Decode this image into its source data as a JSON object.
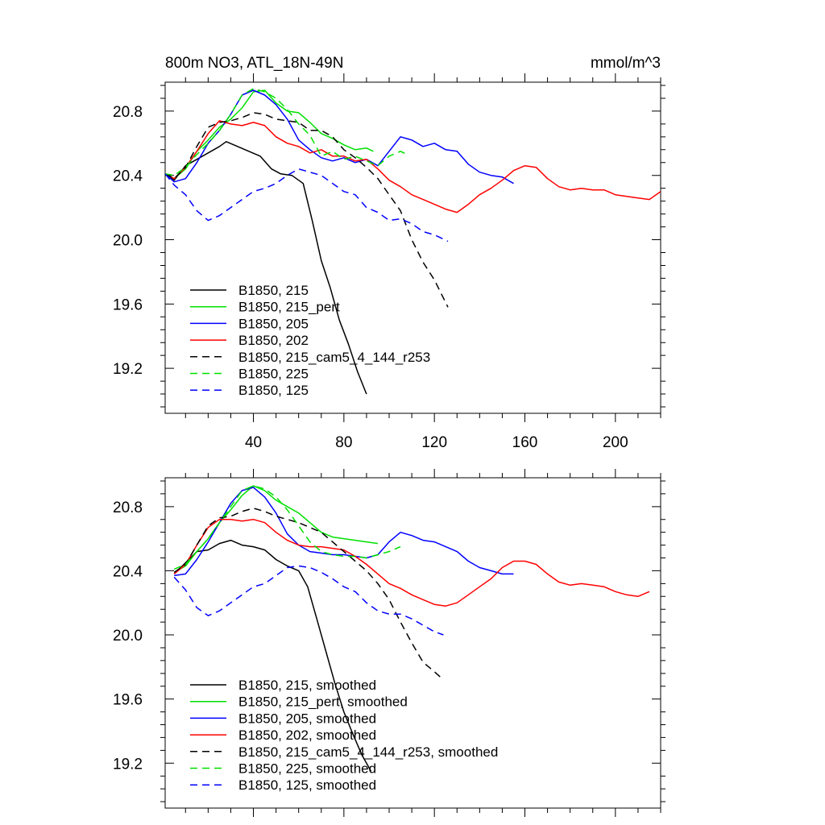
{
  "chart_data": [
    {
      "type": "line",
      "title": "800m NO3, ATL_18N-49N",
      "units": "mmol/m^3",
      "xlabel": "",
      "ylabel": "",
      "xlim": [
        1,
        220
      ],
      "ylim": [
        18.92,
        20.98
      ],
      "xticks": [
        40,
        80,
        120,
        160,
        200
      ],
      "xtick_labels": [
        "40",
        "80",
        "120",
        "160",
        "200"
      ],
      "yticks": [
        19.2,
        19.6,
        20.0,
        20.4,
        20.8
      ],
      "ytick_labels": [
        "19.2",
        "19.6",
        "20.0",
        "20.4",
        "20.8"
      ],
      "legend_position": "bottom-left",
      "series": [
        {
          "name": "B1850, 215",
          "color": "#000000",
          "dash": "solid",
          "x": [
            1,
            5,
            10,
            15,
            20,
            25,
            28,
            33,
            38,
            43,
            48,
            52,
            57,
            62,
            66,
            70,
            74,
            78,
            82,
            86,
            90
          ],
          "y": [
            20.41,
            20.37,
            20.46,
            20.5,
            20.54,
            20.58,
            20.61,
            20.58,
            20.55,
            20.52,
            20.44,
            20.41,
            20.4,
            20.35,
            20.12,
            19.87,
            19.7,
            19.5,
            19.35,
            19.18,
            19.04
          ]
        },
        {
          "name": "B1850, 215_pert",
          "color": "#00e000",
          "dash": "solid",
          "x": [
            1,
            5,
            10,
            15,
            20,
            25,
            30,
            35,
            40,
            45,
            50,
            55,
            60,
            65,
            70,
            75,
            80,
            85,
            90,
            93
          ],
          "y": [
            20.41,
            20.38,
            20.44,
            20.55,
            20.62,
            20.7,
            20.75,
            20.82,
            20.92,
            20.93,
            20.85,
            20.8,
            20.79,
            20.73,
            20.66,
            20.63,
            20.59,
            20.56,
            20.57,
            20.55
          ]
        },
        {
          "name": "B1850, 205",
          "color": "#0000ff",
          "dash": "solid",
          "x": [
            1,
            5,
            10,
            15,
            20,
            25,
            30,
            35,
            40,
            45,
            50,
            55,
            60,
            65,
            70,
            75,
            80,
            85,
            90,
            95,
            100,
            105,
            110,
            115,
            120,
            125,
            130,
            135,
            140,
            145,
            150,
            155
          ],
          "y": [
            20.41,
            20.36,
            20.38,
            20.48,
            20.6,
            20.68,
            20.78,
            20.9,
            20.93,
            20.9,
            20.84,
            20.75,
            20.62,
            20.56,
            20.51,
            20.49,
            20.51,
            20.48,
            20.5,
            20.46,
            20.55,
            20.64,
            20.62,
            20.58,
            20.6,
            20.56,
            20.55,
            20.47,
            20.42,
            20.4,
            20.39,
            20.35
          ]
        },
        {
          "name": "B1850, 202",
          "color": "#ff0000",
          "dash": "solid",
          "x": [
            1,
            5,
            10,
            15,
            20,
            25,
            30,
            35,
            40,
            45,
            50,
            55,
            60,
            65,
            70,
            75,
            80,
            85,
            90,
            95,
            100,
            105,
            110,
            115,
            120,
            125,
            130,
            135,
            140,
            145,
            150,
            155,
            160,
            165,
            170,
            175,
            180,
            185,
            190,
            195,
            200,
            205,
            210,
            215,
            220
          ],
          "y": [
            20.41,
            20.38,
            20.45,
            20.55,
            20.66,
            20.74,
            20.72,
            20.71,
            20.73,
            20.71,
            20.64,
            20.6,
            20.58,
            20.54,
            20.56,
            20.52,
            20.52,
            20.49,
            20.5,
            20.44,
            20.37,
            20.33,
            20.28,
            20.25,
            20.22,
            20.19,
            20.17,
            20.22,
            20.28,
            20.32,
            20.37,
            20.43,
            20.46,
            20.45,
            20.38,
            20.33,
            20.31,
            20.32,
            20.31,
            20.31,
            20.28,
            20.27,
            20.26,
            20.25,
            20.3
          ]
        },
        {
          "name": "B1850, 215_cam5_4_144_r253",
          "color": "#000000",
          "dash": "dashed",
          "x": [
            1,
            5,
            10,
            15,
            20,
            25,
            30,
            35,
            40,
            45,
            50,
            55,
            60,
            65,
            70,
            75,
            80,
            85,
            90,
            95,
            100,
            105,
            110,
            115,
            120,
            126
          ],
          "y": [
            20.41,
            20.38,
            20.45,
            20.58,
            20.7,
            20.73,
            20.74,
            20.76,
            20.79,
            20.78,
            20.75,
            20.74,
            20.73,
            20.68,
            20.68,
            20.64,
            20.56,
            20.51,
            20.45,
            20.38,
            20.28,
            20.18,
            20.0,
            19.86,
            19.75,
            19.58
          ]
        },
        {
          "name": "B1850, 225",
          "color": "#00e000",
          "dash": "dashed",
          "x": [
            1,
            5,
            10,
            15,
            20,
            25,
            30,
            35,
            40,
            45,
            50,
            55,
            60,
            65,
            70,
            75,
            80,
            85,
            90,
            95,
            100,
            105,
            108
          ],
          "y": [
            20.41,
            20.4,
            20.45,
            20.53,
            20.6,
            20.68,
            20.78,
            20.9,
            20.94,
            20.92,
            20.88,
            20.81,
            20.72,
            20.65,
            20.52,
            20.55,
            20.5,
            20.52,
            20.49,
            20.46,
            20.52,
            20.55,
            20.53
          ]
        },
        {
          "name": "B1850, 125",
          "color": "#0000ff",
          "dash": "dashed",
          "x": [
            1,
            5,
            10,
            15,
            20,
            25,
            30,
            35,
            40,
            45,
            50,
            55,
            60,
            65,
            70,
            75,
            80,
            85,
            90,
            95,
            100,
            105,
            110,
            115,
            120,
            126
          ],
          "y": [
            20.41,
            20.34,
            20.28,
            20.18,
            20.12,
            20.15,
            20.2,
            20.25,
            20.3,
            20.32,
            20.35,
            20.4,
            20.44,
            20.42,
            20.4,
            20.35,
            20.3,
            20.28,
            20.2,
            20.17,
            20.12,
            20.13,
            20.1,
            20.05,
            20.03,
            19.99
          ]
        }
      ]
    },
    {
      "type": "line",
      "title": "",
      "xlabel": "",
      "ylabel": "",
      "xlim": [
        1,
        220
      ],
      "ylim": [
        18.92,
        20.98
      ],
      "xticks": [
        40,
        80,
        120,
        160,
        200
      ],
      "xtick_labels": [],
      "yticks": [
        19.2,
        19.6,
        20.0,
        20.4,
        20.8
      ],
      "ytick_labels": [
        "19.2",
        "19.6",
        "20.0",
        "20.4",
        "20.8"
      ],
      "legend_position": "bottom-left",
      "series": [
        {
          "name": "B1850, 215, smoothed",
          "color": "#000000",
          "dash": "solid",
          "x": [
            5,
            10,
            15,
            20,
            25,
            30,
            35,
            40,
            45,
            50,
            55,
            60,
            64,
            68,
            72,
            76,
            80,
            84,
            88,
            92
          ],
          "y": [
            20.38,
            20.45,
            20.52,
            20.53,
            20.57,
            20.59,
            20.56,
            20.55,
            20.53,
            20.47,
            20.43,
            20.4,
            20.3,
            20.1,
            19.9,
            19.7,
            19.52,
            19.38,
            19.25,
            19.15
          ]
        },
        {
          "name": "B1850, 215_pert, smoothed",
          "color": "#00e000",
          "dash": "solid",
          "x": [
            5,
            10,
            15,
            20,
            25,
            30,
            35,
            40,
            45,
            50,
            55,
            60,
            65,
            70,
            75,
            80,
            85,
            90,
            95
          ],
          "y": [
            20.39,
            20.43,
            20.52,
            20.6,
            20.7,
            20.78,
            20.87,
            20.93,
            20.9,
            20.84,
            20.8,
            20.76,
            20.7,
            20.64,
            20.61,
            20.6,
            20.59,
            20.58,
            20.57
          ]
        },
        {
          "name": "B1850, 205, smoothed",
          "color": "#0000ff",
          "dash": "solid",
          "x": [
            5,
            10,
            15,
            20,
            25,
            30,
            35,
            40,
            45,
            50,
            55,
            60,
            65,
            70,
            75,
            80,
            85,
            90,
            95,
            100,
            105,
            110,
            115,
            120,
            125,
            130,
            135,
            140,
            145,
            150,
            155
          ],
          "y": [
            20.37,
            20.38,
            20.47,
            20.58,
            20.7,
            20.82,
            20.9,
            20.92,
            20.86,
            20.76,
            20.63,
            20.56,
            20.52,
            20.51,
            20.5,
            20.5,
            20.49,
            20.48,
            20.5,
            20.58,
            20.64,
            20.62,
            20.59,
            20.58,
            20.55,
            20.52,
            20.46,
            20.42,
            20.4,
            20.38,
            20.38
          ]
        },
        {
          "name": "B1850, 202, smoothed",
          "color": "#ff0000",
          "dash": "solid",
          "x": [
            5,
            10,
            15,
            20,
            25,
            30,
            35,
            40,
            45,
            50,
            55,
            60,
            65,
            70,
            75,
            80,
            85,
            90,
            95,
            100,
            105,
            110,
            115,
            120,
            125,
            130,
            135,
            140,
            145,
            150,
            155,
            160,
            165,
            170,
            175,
            180,
            185,
            190,
            195,
            200,
            205,
            210,
            215
          ],
          "y": [
            20.38,
            20.44,
            20.56,
            20.67,
            20.72,
            20.72,
            20.71,
            20.72,
            20.7,
            20.64,
            20.59,
            20.56,
            20.55,
            20.55,
            20.54,
            20.53,
            20.49,
            20.44,
            20.38,
            20.32,
            20.29,
            20.25,
            20.22,
            20.19,
            20.18,
            20.2,
            20.25,
            20.3,
            20.35,
            20.42,
            20.46,
            20.46,
            20.44,
            20.38,
            20.33,
            20.31,
            20.32,
            20.31,
            20.3,
            20.27,
            20.25,
            20.24,
            20.27
          ]
        },
        {
          "name": "B1850, 215_cam5_4_144_r253, smoothed",
          "color": "#000000",
          "dash": "dashed",
          "x": [
            5,
            10,
            15,
            20,
            25,
            30,
            35,
            40,
            45,
            50,
            55,
            60,
            65,
            70,
            75,
            80,
            85,
            90,
            95,
            100,
            105,
            110,
            115,
            120,
            124
          ],
          "y": [
            20.39,
            20.44,
            20.56,
            20.68,
            20.73,
            20.74,
            20.77,
            20.79,
            20.77,
            20.74,
            20.72,
            20.7,
            20.67,
            20.64,
            20.58,
            20.52,
            20.46,
            20.4,
            20.32,
            20.22,
            20.08,
            19.95,
            19.83,
            19.77,
            19.72
          ]
        },
        {
          "name": "B1850, 225, smoothed",
          "color": "#00e000",
          "dash": "dashed",
          "x": [
            5,
            10,
            15,
            20,
            25,
            30,
            35,
            40,
            45,
            50,
            55,
            60,
            65,
            70,
            75,
            80,
            85,
            90,
            95,
            100,
            105
          ],
          "y": [
            20.41,
            20.44,
            20.52,
            20.6,
            20.7,
            20.8,
            20.9,
            20.93,
            20.91,
            20.86,
            20.78,
            20.68,
            20.58,
            20.52,
            20.5,
            20.49,
            20.49,
            20.48,
            20.5,
            20.52,
            20.55
          ]
        },
        {
          "name": "B1850, 125, smoothed",
          "color": "#0000ff",
          "dash": "dashed",
          "x": [
            5,
            10,
            15,
            20,
            25,
            30,
            35,
            40,
            45,
            50,
            55,
            60,
            65,
            70,
            75,
            80,
            85,
            90,
            95,
            100,
            105,
            110,
            115,
            120,
            124
          ],
          "y": [
            20.36,
            20.28,
            20.17,
            20.12,
            20.15,
            20.2,
            20.25,
            20.3,
            20.32,
            20.37,
            20.42,
            20.43,
            20.42,
            20.39,
            20.35,
            20.3,
            20.27,
            20.2,
            20.15,
            20.13,
            20.13,
            20.1,
            20.06,
            20.02,
            20.0
          ]
        }
      ]
    }
  ]
}
